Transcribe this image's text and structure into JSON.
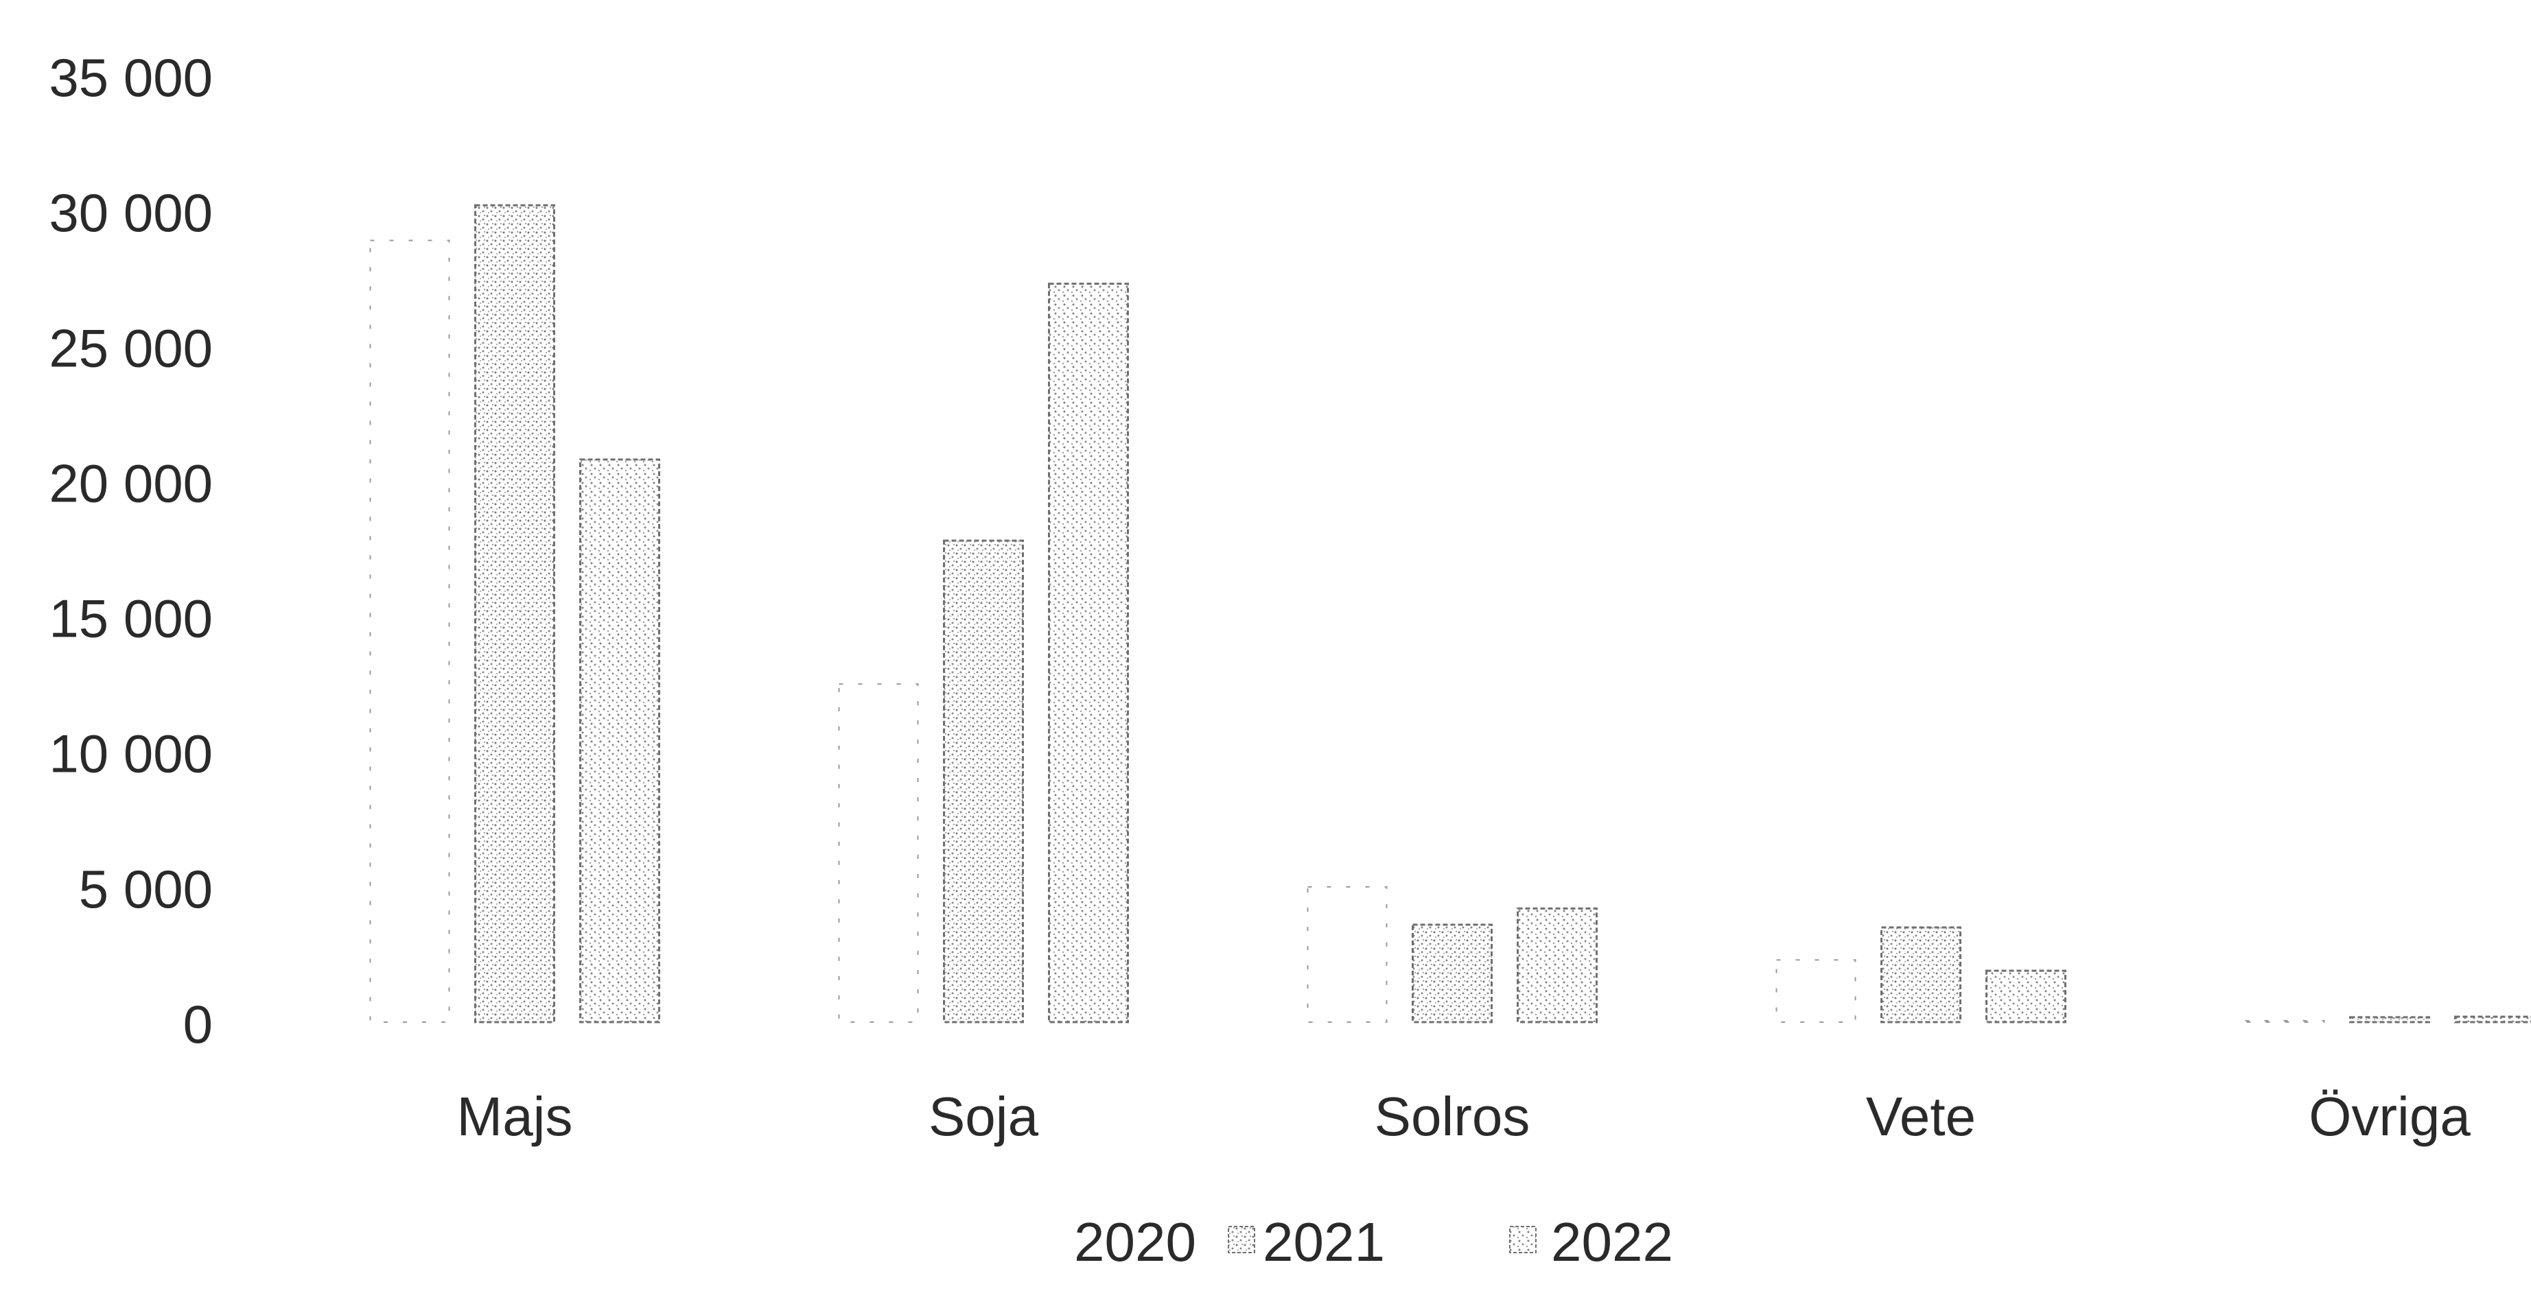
{
  "chart_data": {
    "type": "bar",
    "title": "",
    "xlabel": "",
    "ylabel": "",
    "categories": [
      "Majs",
      "Soja",
      "Solros",
      "Vete",
      "Övriga"
    ],
    "series": [
      {
        "name": "2020",
        "values": [
          28900,
          12500,
          5000,
          2300,
          50
        ],
        "color": "#d8d8d8"
      },
      {
        "name": "2021",
        "values": [
          30200,
          17800,
          3600,
          3500,
          180
        ],
        "color": "#b8b8b8"
      },
      {
        "name": "2022",
        "values": [
          20800,
          27300,
          4200,
          1900,
          200
        ],
        "color": "#c4c4c4"
      }
    ],
    "ylim": [
      0,
      35000
    ],
    "yticks": [
      0,
      5000,
      10000,
      15000,
      20000,
      25000,
      30000,
      35000
    ],
    "ytick_labels": [
      "0",
      "5 000",
      "10 000",
      "15 000",
      "20 000",
      "25 000",
      "30 000",
      "35 000"
    ],
    "grid": false,
    "legend_position": "bottom",
    "legend": [
      "2020",
      "2021",
      "2022"
    ],
    "bar_stroke_color": "#6f6f6f"
  }
}
